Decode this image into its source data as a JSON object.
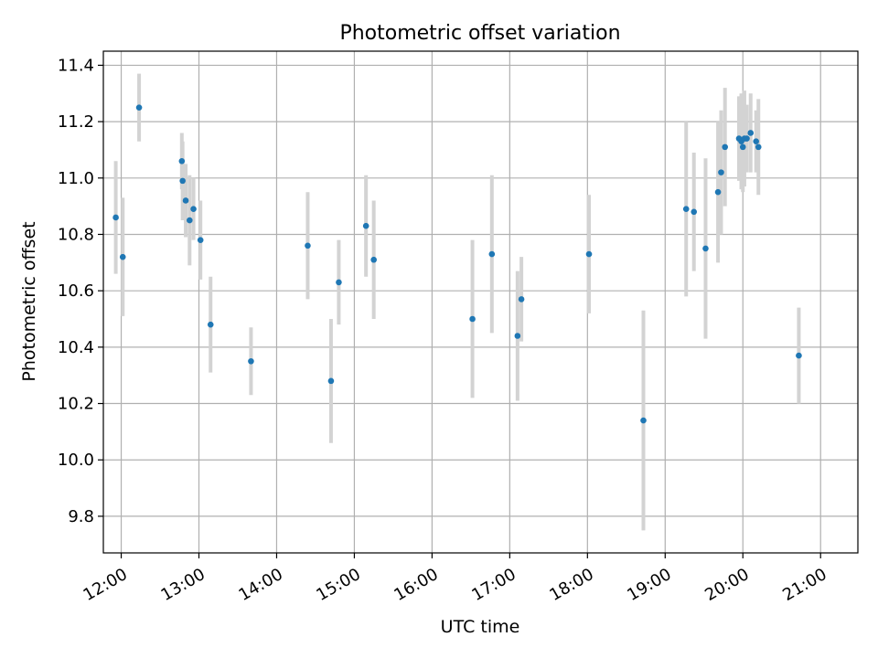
{
  "chart_data": {
    "type": "scatter",
    "title": "Photometric offset variation",
    "xlabel": "UTC time",
    "ylabel": "Photometric offset",
    "x_unit": "hours UTC",
    "xlim": [
      11.77,
      21.48
    ],
    "ylim": [
      9.67,
      11.45
    ],
    "x_ticks": [
      {
        "value": 12,
        "label": "12:00"
      },
      {
        "value": 13,
        "label": "13:00"
      },
      {
        "value": 14,
        "label": "14:00"
      },
      {
        "value": 15,
        "label": "15:00"
      },
      {
        "value": 16,
        "label": "16:00"
      },
      {
        "value": 17,
        "label": "17:00"
      },
      {
        "value": 18,
        "label": "18:00"
      },
      {
        "value": 19,
        "label": "19:00"
      },
      {
        "value": 20,
        "label": "20:00"
      },
      {
        "value": 21,
        "label": "21:00"
      }
    ],
    "y_ticks": [
      {
        "value": 9.8,
        "label": "9.8"
      },
      {
        "value": 10.0,
        "label": "10.0"
      },
      {
        "value": 10.2,
        "label": "10.2"
      },
      {
        "value": 10.4,
        "label": "10.4"
      },
      {
        "value": 10.6,
        "label": "10.6"
      },
      {
        "value": 10.8,
        "label": "10.8"
      },
      {
        "value": 11.0,
        "label": "11.0"
      },
      {
        "value": 11.2,
        "label": "11.2"
      },
      {
        "value": 11.4,
        "label": "11.4"
      }
    ],
    "grid": true,
    "colors": {
      "point": "#1f77b4",
      "errorbar": "#d3d3d3",
      "grid": "#b0b0b0"
    },
    "points": [
      {
        "x": 11.93,
        "y": 10.86,
        "yerr": 0.2
      },
      {
        "x": 12.02,
        "y": 10.72,
        "yerr": 0.21
      },
      {
        "x": 12.23,
        "y": 11.25,
        "yerr": 0.12
      },
      {
        "x": 12.78,
        "y": 11.06,
        "yerr": 0.1
      },
      {
        "x": 12.79,
        "y": 10.99,
        "yerr": 0.14
      },
      {
        "x": 12.83,
        "y": 10.92,
        "yerr": 0.13
      },
      {
        "x": 12.88,
        "y": 10.85,
        "yerr": 0.16
      },
      {
        "x": 12.93,
        "y": 10.89,
        "yerr": 0.11
      },
      {
        "x": 13.02,
        "y": 10.78,
        "yerr": 0.14
      },
      {
        "x": 13.15,
        "y": 10.48,
        "yerr": 0.17
      },
      {
        "x": 13.67,
        "y": 10.35,
        "yerr": 0.12
      },
      {
        "x": 14.4,
        "y": 10.76,
        "yerr": 0.19
      },
      {
        "x": 14.7,
        "y": 10.28,
        "yerr": 0.22
      },
      {
        "x": 14.8,
        "y": 10.63,
        "yerr": 0.15
      },
      {
        "x": 15.15,
        "y": 10.83,
        "yerr": 0.18
      },
      {
        "x": 15.25,
        "y": 10.71,
        "yerr": 0.21
      },
      {
        "x": 16.52,
        "y": 10.5,
        "yerr": 0.28
      },
      {
        "x": 16.77,
        "y": 10.73,
        "yerr": 0.28
      },
      {
        "x": 17.1,
        "y": 10.44,
        "yerr": 0.23
      },
      {
        "x": 17.15,
        "y": 10.57,
        "yerr": 0.15
      },
      {
        "x": 18.02,
        "y": 10.73,
        "yerr": 0.21
      },
      {
        "x": 18.72,
        "y": 10.14,
        "yerr": 0.39
      },
      {
        "x": 19.27,
        "y": 10.89,
        "yerr": 0.31
      },
      {
        "x": 19.37,
        "y": 10.88,
        "yerr": 0.21
      },
      {
        "x": 19.52,
        "y": 10.75,
        "yerr": 0.32
      },
      {
        "x": 19.68,
        "y": 10.95,
        "yerr": 0.25
      },
      {
        "x": 19.72,
        "y": 11.02,
        "yerr": 0.22
      },
      {
        "x": 19.77,
        "y": 11.11,
        "yerr": 0.21
      },
      {
        "x": 19.95,
        "y": 11.14,
        "yerr": 0.15
      },
      {
        "x": 19.98,
        "y": 11.13,
        "yerr": 0.17
      },
      {
        "x": 20.0,
        "y": 11.11,
        "yerr": 0.16
      },
      {
        "x": 20.02,
        "y": 11.14,
        "yerr": 0.17
      },
      {
        "x": 20.05,
        "y": 11.14,
        "yerr": 0.12
      },
      {
        "x": 20.1,
        "y": 11.16,
        "yerr": 0.14
      },
      {
        "x": 20.17,
        "y": 11.13,
        "yerr": 0.11
      },
      {
        "x": 20.2,
        "y": 11.11,
        "yerr": 0.17
      },
      {
        "x": 20.72,
        "y": 10.37,
        "yerr": 0.17
      }
    ]
  }
}
